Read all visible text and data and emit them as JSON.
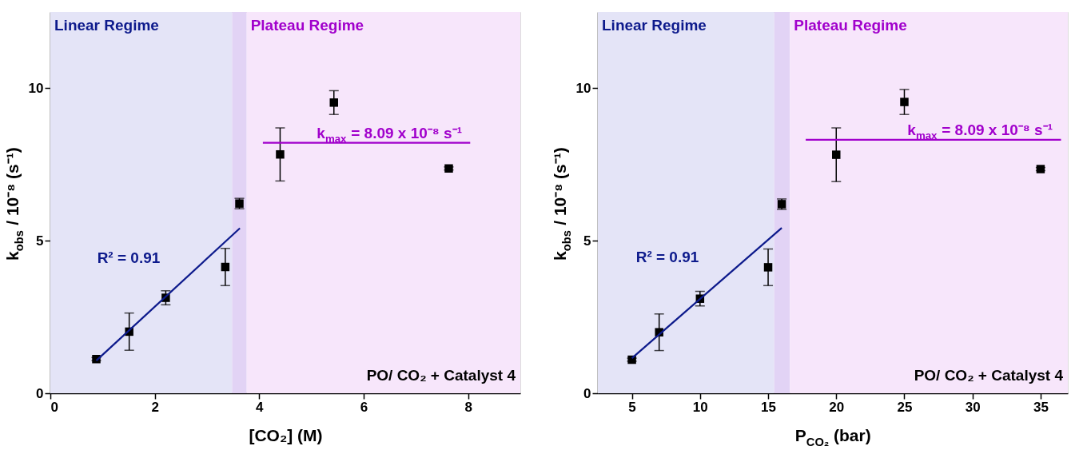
{
  "chart_data": [
    {
      "type": "scatter",
      "xlabel": "[CO₂] (M)",
      "ylabel": "k$_{obs}$ / 10⁻⁸ (s⁻¹)",
      "xlim": [
        0,
        9
      ],
      "ylim": [
        0,
        12.5
      ],
      "xticks": [
        0,
        2,
        4,
        6,
        8
      ],
      "yticks": [
        0,
        5,
        10
      ],
      "grid": false,
      "marker": "square",
      "series": [
        {
          "color": "#000000",
          "x": [
            0.88,
            1.51,
            2.21,
            3.35,
            3.62,
            4.4,
            5.43,
            7.63
          ],
          "values": [
            1.12,
            2.02,
            3.13,
            4.14,
            6.22,
            7.83,
            9.53,
            7.37
          ],
          "errors": [
            0.05,
            0.61,
            0.23,
            0.61,
            0.17,
            0.87,
            0.39,
            0.05
          ]
        },
        {
          "type": "line",
          "marker": "none",
          "line_style": "solid",
          "color": "#0d1a8c",
          "x": [
            0.88,
            3.63
          ],
          "values": [
            1.07,
            5.41
          ]
        },
        {
          "type": "line",
          "marker": "none",
          "line_style": "solid",
          "color": "#a100cc",
          "x": [
            4.07,
            8.04
          ],
          "values": [
            8.21,
            8.21
          ]
        }
      ],
      "bands": [
        {
          "axis": "x",
          "from": 0,
          "to": 3.48,
          "label": "Linear Regime",
          "color": "#e4e4f7"
        },
        {
          "axis": "x",
          "from": 3.48,
          "to": 3.76,
          "color": "#e2d3f5"
        },
        {
          "axis": "x",
          "from": 3.76,
          "to": 9,
          "label": "Plateau Regime",
          "color": "#f7e6fb"
        }
      ],
      "annotations": [
        "R² = 0.91",
        {
          "text": "k$_{max}$ = 8.09 x 10⁻⁸ s⁻¹",
          "x": 6.53,
          "y": 8.21
        },
        "PO/ CO₂ + Catalyst 4"
      ]
    },
    {
      "type": "scatter",
      "xlabel": "P$_{CO₂}$ (bar)",
      "ylabel": "k$_{obs}$ / 10⁻⁸ (s⁻¹)",
      "xlim": [
        2.5,
        37
      ],
      "ylim": [
        0,
        12.5
      ],
      "xticks": [
        5,
        10,
        15,
        20,
        25,
        30,
        35
      ],
      "yticks": [
        0,
        5,
        10
      ],
      "grid": false,
      "marker": "square",
      "series": [
        {
          "color": "#000000",
          "x": [
            5,
            7,
            10,
            15,
            16,
            20,
            25,
            35
          ],
          "values": [
            1.1,
            2.0,
            3.1,
            4.13,
            6.2,
            7.82,
            9.55,
            7.35
          ],
          "errors": [
            0.05,
            0.6,
            0.24,
            0.6,
            0.17,
            0.88,
            0.41,
            0.05
          ]
        },
        {
          "type": "line",
          "marker": "none",
          "line_style": "solid",
          "color": "#0d1a8c",
          "x": [
            5,
            16
          ],
          "values": [
            1.15,
            5.42
          ]
        },
        {
          "type": "line",
          "marker": "none",
          "line_style": "solid",
          "color": "#a100cc",
          "x": [
            17.76,
            36.5
          ],
          "values": [
            8.31,
            8.31
          ]
        }
      ],
      "bands": [
        {
          "axis": "x",
          "from": 2.5,
          "to": 15.44,
          "label": "Linear Regime",
          "color": "#e4e4f7"
        },
        {
          "axis": "x",
          "from": 15.44,
          "to": 16.6,
          "color": "#e2d3f5"
        },
        {
          "axis": "x",
          "from": 16.6,
          "to": 37,
          "label": "Plateau Regime",
          "color": "#f7e6fb"
        }
      ],
      "annotations": [
        "R² = 0.91",
        {
          "text": "k$_{max}$ = 8.09 x 10⁻⁸ s⁻¹",
          "x": 30.7,
          "y": 8.31
        },
        "PO/ CO₂ + Catalyst 4"
      ]
    }
  ]
}
